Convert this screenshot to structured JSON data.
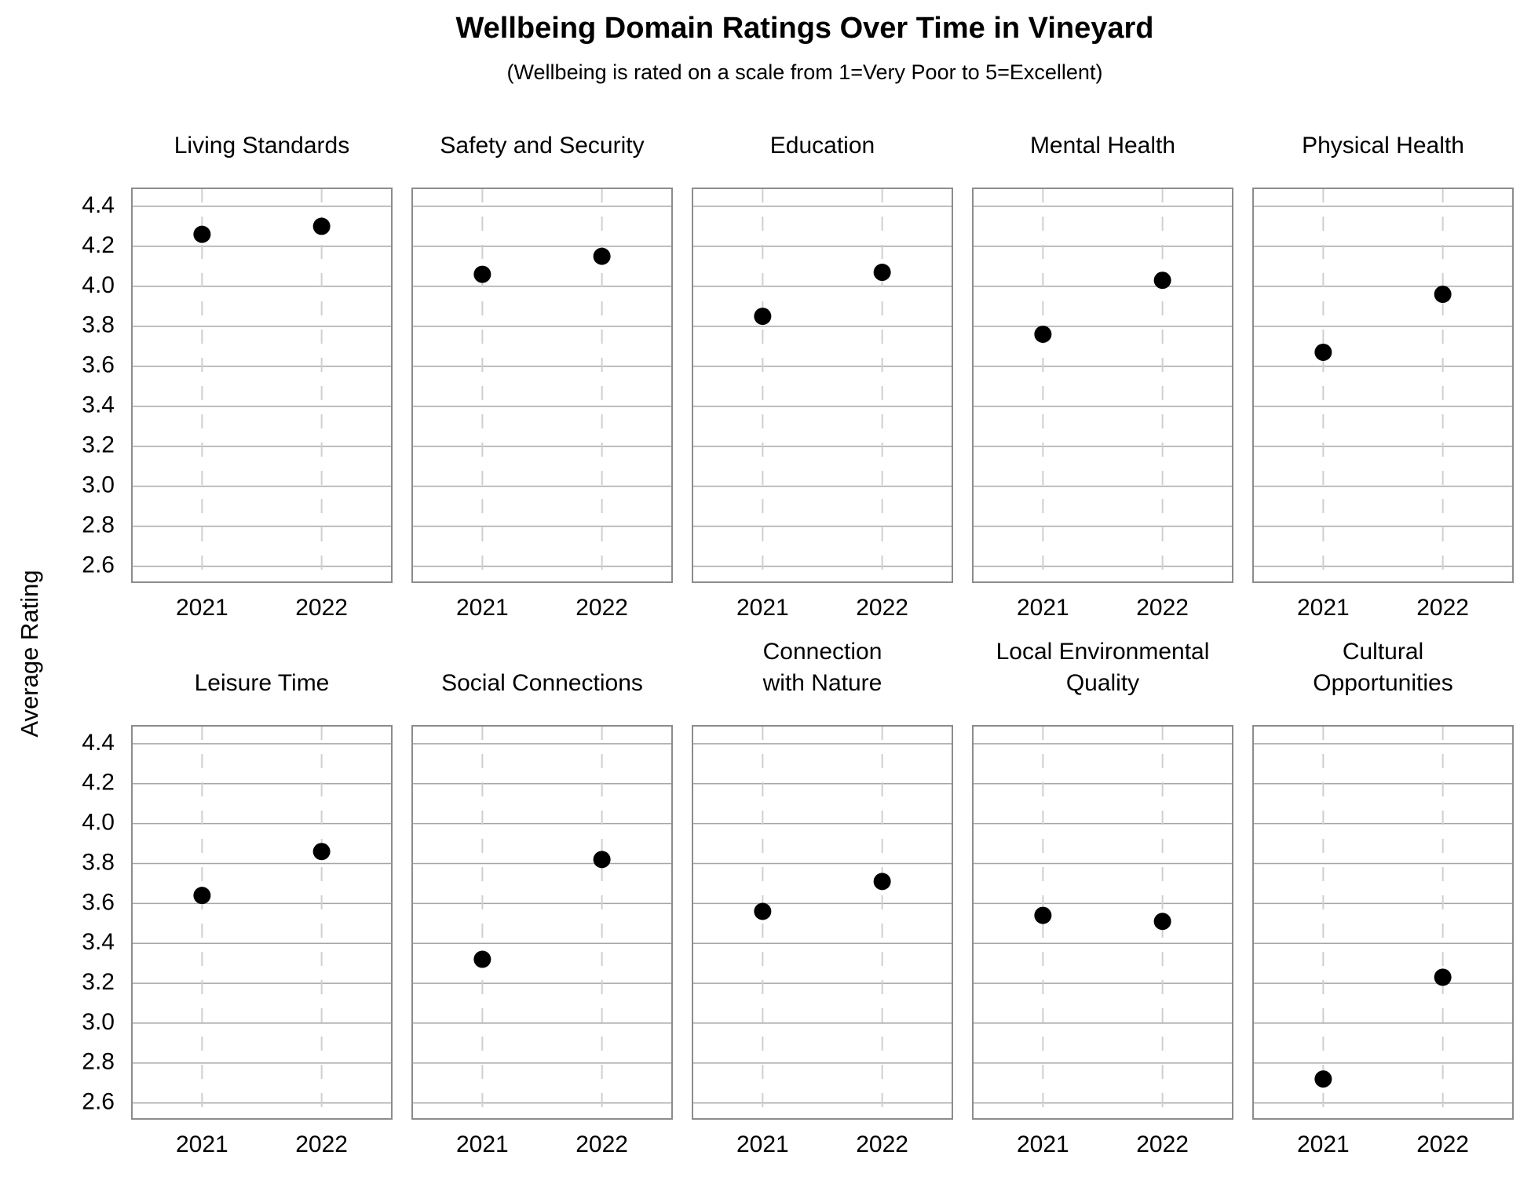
{
  "chart_data": {
    "type": "scatter",
    "title": "Wellbeing Domain Ratings Over Time in Vineyard",
    "subtitle": "(Wellbeing is rated on a scale from 1=Very Poor to 5=Excellent)",
    "y_label": "Average Rating",
    "categories": [
      "2021",
      "2022"
    ],
    "ylim": [
      2.52,
      4.49
    ],
    "yticks": [
      {
        "value": 2.6,
        "label": "2.6"
      },
      {
        "value": 2.8,
        "label": "2.8"
      },
      {
        "value": 3.0,
        "label": "3.0"
      },
      {
        "value": 3.2,
        "label": "3.2"
      },
      {
        "value": 3.4,
        "label": "3.4"
      },
      {
        "value": 3.6,
        "label": "3.6"
      },
      {
        "value": 3.8,
        "label": "3.8"
      },
      {
        "value": 4.0,
        "label": "4.0"
      },
      {
        "value": 4.2,
        "label": "4.2"
      },
      {
        "value": 4.4,
        "label": "4.4"
      }
    ],
    "grid": true,
    "color": "#000000",
    "panels": [
      {
        "title": "Living Standards",
        "values": [
          4.26,
          4.3
        ]
      },
      {
        "title": "Safety and Security",
        "values": [
          4.06,
          4.15
        ]
      },
      {
        "title": "Education",
        "values": [
          3.85,
          4.07
        ]
      },
      {
        "title": "Mental Health",
        "values": [
          3.76,
          4.03
        ]
      },
      {
        "title": "Physical Health",
        "values": [
          3.67,
          3.96
        ]
      },
      {
        "title": "Leisure Time",
        "values": [
          3.64,
          3.86
        ]
      },
      {
        "title": "Social Connections",
        "values": [
          3.32,
          3.82
        ]
      },
      {
        "title": "Connection with Nature",
        "values": [
          3.56,
          3.71
        ]
      },
      {
        "title": "Local Environmental Quality",
        "values": [
          3.54,
          3.51
        ]
      },
      {
        "title": "Cultural Opportunities",
        "values": [
          2.72,
          3.23
        ]
      }
    ]
  }
}
